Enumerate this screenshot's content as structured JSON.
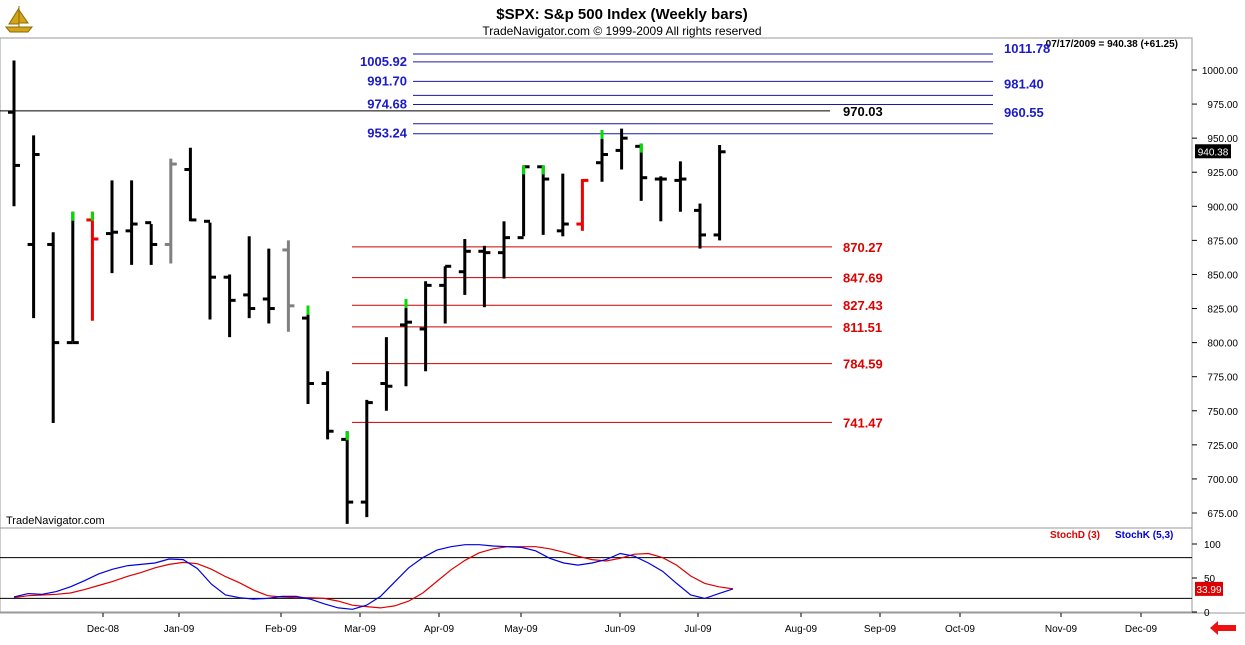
{
  "header": {
    "title": "$SPX:  S&p 500 Index  (Weekly bars)",
    "subtitle": "TradeNavigator.com © 1999-2009 All rights reserved",
    "quote": "07/17/2009 = 940.38 (+61.25)",
    "watermark": "TradeNavigator.com",
    "logo_icon": "sailboat-logo-icon",
    "nav_icon": "left-arrow-icon"
  },
  "chart_data": [
    {
      "type": "ohlc",
      "ylim": [
        660,
        1020
      ],
      "yticks": [
        "1000.00",
        "975.00",
        "950.00",
        "925.00",
        "900.00",
        "875.00",
        "850.00",
        "825.00",
        "800.00",
        "775.00",
        "750.00",
        "725.00",
        "700.00",
        "675.00"
      ],
      "last_price_label": "940.38",
      "bar_colors": {
        "up": "#000000",
        "down_hl": "#000000",
        "green_tick": "#00dd00",
        "red_bar": "#ee0000",
        "gray_bar": "#808080"
      },
      "bars": [
        {
          "h": 1007,
          "l": 900,
          "o": 969,
          "c": 930,
          "color": "black"
        },
        {
          "h": 952,
          "l": 818,
          "o": 872,
          "c": 938,
          "color": "black"
        },
        {
          "h": 881,
          "l": 741,
          "o": 872,
          "c": 800,
          "color": "black"
        },
        {
          "h": 896,
          "l": 801,
          "o": 800,
          "c": 800,
          "color": "black",
          "tick": "green"
        },
        {
          "h": 896,
          "l": 816,
          "o": 890,
          "c": 876,
          "color": "red",
          "tick": "green"
        },
        {
          "h": 919,
          "l": 851,
          "o": 880,
          "c": 881,
          "color": "black"
        },
        {
          "h": 919,
          "l": 857,
          "o": 882,
          "c": 887,
          "color": "black"
        },
        {
          "h": 887,
          "l": 857,
          "o": 888,
          "c": 872,
          "color": "black"
        },
        {
          "h": 935,
          "l": 858,
          "o": 872,
          "c": 931,
          "color": "gray"
        },
        {
          "h": 943,
          "l": 889,
          "o": 927,
          "c": 890,
          "color": "black"
        },
        {
          "h": 888,
          "l": 817,
          "o": 889,
          "c": 848,
          "color": "black"
        },
        {
          "h": 850,
          "l": 804,
          "o": 848,
          "c": 831,
          "color": "black"
        },
        {
          "h": 878,
          "l": 818,
          "o": 835,
          "c": 825,
          "color": "black"
        },
        {
          "h": 869,
          "l": 814,
          "o": 832,
          "c": 825,
          "color": "black"
        },
        {
          "h": 875,
          "l": 808,
          "o": 868,
          "c": 827,
          "color": "gray"
        },
        {
          "h": 827,
          "l": 755,
          "o": 818,
          "c": 770,
          "color": "black",
          "tick": "green"
        },
        {
          "h": 779,
          "l": 729,
          "o": 770,
          "c": 735,
          "color": "black"
        },
        {
          "h": 735,
          "l": 667,
          "o": 729,
          "c": 683,
          "color": "black",
          "tick": "green"
        },
        {
          "h": 758,
          "l": 672,
          "o": 683,
          "c": 756,
          "color": "black"
        },
        {
          "h": 804,
          "l": 750,
          "o": 770,
          "c": 768,
          "color": "black"
        },
        {
          "h": 832,
          "l": 768,
          "o": 813,
          "c": 815,
          "color": "black",
          "tick": "green"
        },
        {
          "h": 845,
          "l": 779,
          "o": 810,
          "c": 842,
          "color": "black"
        },
        {
          "h": 856,
          "l": 814,
          "o": 842,
          "c": 856,
          "color": "black"
        },
        {
          "h": 876,
          "l": 835,
          "o": 852,
          "c": 867,
          "color": "black"
        },
        {
          "h": 871,
          "l": 826,
          "o": 867,
          "c": 866,
          "color": "black"
        },
        {
          "h": 889,
          "l": 847,
          "o": 866,
          "c": 877,
          "color": "black"
        },
        {
          "h": 930,
          "l": 878,
          "o": 877,
          "c": 929,
          "color": "black",
          "tick": "green"
        },
        {
          "h": 930,
          "l": 879,
          "o": 929,
          "c": 920,
          "color": "black",
          "tick": "green"
        },
        {
          "h": 924,
          "l": 878,
          "o": 882,
          "c": 887,
          "color": "black"
        },
        {
          "h": 920,
          "l": 882,
          "o": 887,
          "c": 919,
          "color": "red"
        },
        {
          "h": 956,
          "l": 918,
          "o": 932,
          "c": 938,
          "color": "black",
          "tick": "green"
        },
        {
          "h": 957,
          "l": 927,
          "o": 941,
          "c": 950,
          "color": "black"
        },
        {
          "h": 946,
          "l": 904,
          "o": 944,
          "c": 921,
          "color": "black",
          "tick": "green"
        },
        {
          "h": 922,
          "l": 889,
          "o": 920,
          "c": 920,
          "color": "black"
        },
        {
          "h": 933,
          "l": 896,
          "o": 919,
          "c": 920,
          "color": "black"
        },
        {
          "h": 902,
          "l": 869,
          "o": 897,
          "c": 879,
          "color": "black"
        },
        {
          "h": 945,
          "l": 875,
          "o": 879,
          "c": 940,
          "color": "black"
        }
      ],
      "retracements_upper": [
        {
          "value": 1011.78,
          "label": "1011.78",
          "side": "right"
        },
        {
          "value": 1005.92,
          "label": "1005.92",
          "side": "left"
        },
        {
          "value": 991.7,
          "label": "991.70",
          "side": "left"
        },
        {
          "value": 981.4,
          "label": "981.40",
          "side": "right"
        },
        {
          "value": 974.68,
          "label": "974.68",
          "side": "left"
        },
        {
          "value": 960.55,
          "label": "960.55",
          "side": "right"
        },
        {
          "value": 953.24,
          "label": "953.24",
          "side": "left"
        }
      ],
      "reference_line": {
        "value": 970.03,
        "label": "970.03"
      },
      "retracements_lower": [
        {
          "value": 870.27,
          "label": "870.27"
        },
        {
          "value": 847.69,
          "label": "847.69"
        },
        {
          "value": 827.43,
          "label": "827.43"
        },
        {
          "value": 811.51,
          "label": "811.51"
        },
        {
          "value": 784.59,
          "label": "784.59"
        },
        {
          "value": 741.47,
          "label": "741.47"
        }
      ]
    },
    {
      "type": "line",
      "ylim": [
        -5,
        110
      ],
      "yticks": [
        "100",
        "50",
        "0"
      ],
      "levels": [
        80,
        20
      ],
      "last_value_label": "33.99",
      "series": [
        {
          "name": "StochD (3)",
          "color": "#dd0000",
          "values": [
            21,
            24,
            25,
            26,
            28,
            33,
            39,
            45,
            52,
            58,
            65,
            70,
            73,
            71,
            63,
            52,
            43,
            32,
            24,
            22,
            21,
            21,
            20,
            16,
            10,
            8,
            6,
            9,
            16,
            28,
            45,
            62,
            76,
            87,
            93,
            96,
            96,
            96,
            93,
            88,
            82,
            77,
            75,
            79,
            85,
            86,
            80,
            69,
            53,
            42,
            37,
            34
          ]
        },
        {
          "name": "StochK (5,3)",
          "color": "#0000dd",
          "values": [
            22,
            27,
            26,
            30,
            37,
            46,
            56,
            63,
            68,
            70,
            72,
            78,
            77,
            64,
            41,
            25,
            21,
            19,
            20,
            23,
            23,
            19,
            12,
            6,
            4,
            10,
            23,
            44,
            65,
            80,
            91,
            96,
            99,
            99,
            97,
            96,
            95,
            90,
            79,
            72,
            69,
            72,
            77,
            86,
            82,
            72,
            60,
            42,
            25,
            20,
            27,
            34
          ]
        }
      ]
    }
  ],
  "x_axis": {
    "labels": [
      "Dec-08",
      "Jan-09",
      "Feb-09",
      "Mar-09",
      "Apr-09",
      "May-09",
      "Jun-09",
      "Jul-09",
      "Aug-09",
      "Sep-09",
      "Oct-09",
      "Nov-09",
      "Dec-09"
    ]
  }
}
